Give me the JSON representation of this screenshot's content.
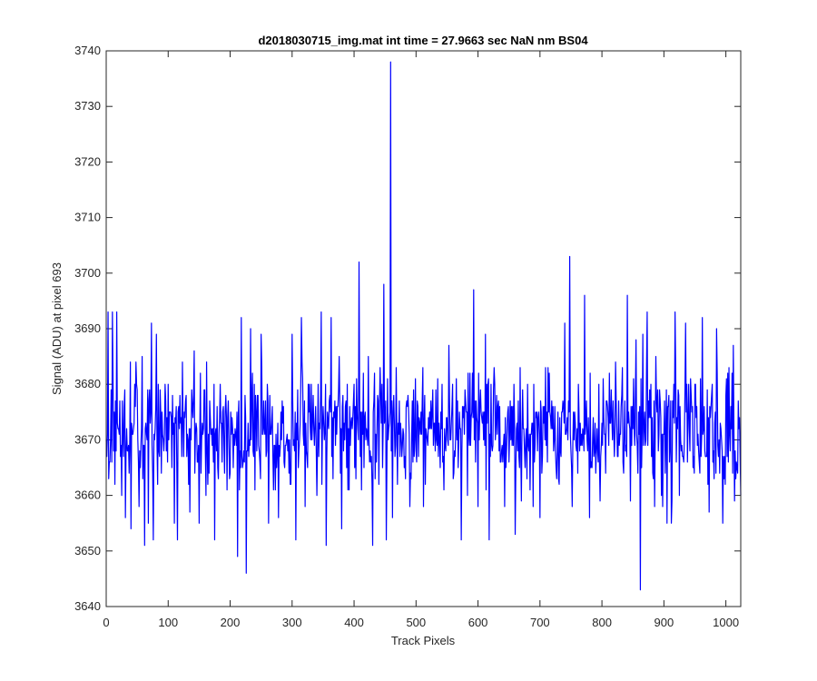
{
  "chart_data": {
    "type": "line",
    "title": "d2018030715_img.mat int time = 27.9663 sec  NaN nm BS04",
    "xlabel": "Track Pixels",
    "ylabel": "Signal (ADU) at pixel 693",
    "xlim": [
      0,
      1024
    ],
    "ylim": [
      3640,
      3740
    ],
    "xticks": [
      0,
      100,
      200,
      300,
      400,
      500,
      600,
      700,
      800,
      900,
      1000
    ],
    "yticks": [
      3640,
      3650,
      3660,
      3670,
      3680,
      3690,
      3700,
      3710,
      3720,
      3730,
      3740
    ],
    "grid": false,
    "legend": "none",
    "line_color": "#0000ff",
    "series": [
      {
        "baseline": 3672,
        "noise_range": [
          3651,
          3693
        ],
        "points": [
          [
            0,
            3670
          ],
          [
            3,
            3693
          ],
          [
            6,
            3666
          ],
          [
            10,
            3693
          ],
          [
            14,
            3662
          ],
          [
            17,
            3693
          ],
          [
            25,
            3660
          ],
          [
            31,
            3656
          ],
          [
            40,
            3654
          ],
          [
            48,
            3684
          ],
          [
            53,
            3658
          ],
          [
            58,
            3685
          ],
          [
            62,
            3651
          ],
          [
            68,
            3655
          ],
          [
            73,
            3691
          ],
          [
            76,
            3652
          ],
          [
            81,
            3689
          ],
          [
            110,
            3655
          ],
          [
            115,
            3652
          ],
          [
            123,
            3684
          ],
          [
            135,
            3657
          ],
          [
            150,
            3655
          ],
          [
            162,
            3684
          ],
          [
            175,
            3652
          ],
          [
            184,
            3680
          ],
          [
            195,
            3661
          ],
          [
            205,
            3665
          ],
          [
            212,
            3649
          ],
          [
            218,
            3692
          ],
          [
            226,
            3646
          ],
          [
            233,
            3690
          ],
          [
            240,
            3661
          ],
          [
            250,
            3689
          ],
          [
            262,
            3655
          ],
          [
            278,
            3656
          ],
          [
            300,
            3689
          ],
          [
            306,
            3652
          ],
          [
            315,
            3692
          ],
          [
            340,
            3660
          ],
          [
            347,
            3693
          ],
          [
            355,
            3651
          ],
          [
            363,
            3692
          ],
          [
            380,
            3654
          ],
          [
            392,
            3661
          ],
          [
            408,
            3702
          ],
          [
            412,
            3661
          ],
          [
            430,
            3651
          ],
          [
            448,
            3698
          ],
          [
            452,
            3652
          ],
          [
            459,
            3738
          ],
          [
            462,
            3656
          ],
          [
            470,
            3662
          ],
          [
            490,
            3658
          ],
          [
            512,
            3658
          ],
          [
            530,
            3673
          ],
          [
            545,
            3661
          ],
          [
            553,
            3687
          ],
          [
            573,
            3652
          ],
          [
            587,
            3682
          ],
          [
            593,
            3697
          ],
          [
            600,
            3658
          ],
          [
            612,
            3689
          ],
          [
            618,
            3652
          ],
          [
            630,
            3678
          ],
          [
            643,
            3658
          ],
          [
            660,
            3653
          ],
          [
            684,
            3661
          ],
          [
            700,
            3656
          ],
          [
            713,
            3683
          ],
          [
            730,
            3663
          ],
          [
            740,
            3691
          ],
          [
            748,
            3703
          ],
          [
            752,
            3658
          ],
          [
            772,
            3696
          ],
          [
            780,
            3656
          ],
          [
            797,
            3659
          ],
          [
            812,
            3682
          ],
          [
            833,
            3683
          ],
          [
            841,
            3696
          ],
          [
            846,
            3659
          ],
          [
            855,
            3688
          ],
          [
            862,
            3643
          ],
          [
            866,
            3689
          ],
          [
            873,
            3693
          ],
          [
            885,
            3658
          ],
          [
            898,
            3658
          ],
          [
            905,
            3655
          ],
          [
            912,
            3655
          ],
          [
            918,
            3693
          ],
          [
            925,
            3660
          ],
          [
            935,
            3691
          ],
          [
            950,
            3680
          ],
          [
            962,
            3692
          ],
          [
            973,
            3657
          ],
          [
            985,
            3690
          ],
          [
            995,
            3655
          ],
          [
            1003,
            3682
          ],
          [
            1012,
            3687
          ],
          [
            1018,
            3665
          ],
          [
            1024,
            3660
          ]
        ]
      }
    ]
  }
}
